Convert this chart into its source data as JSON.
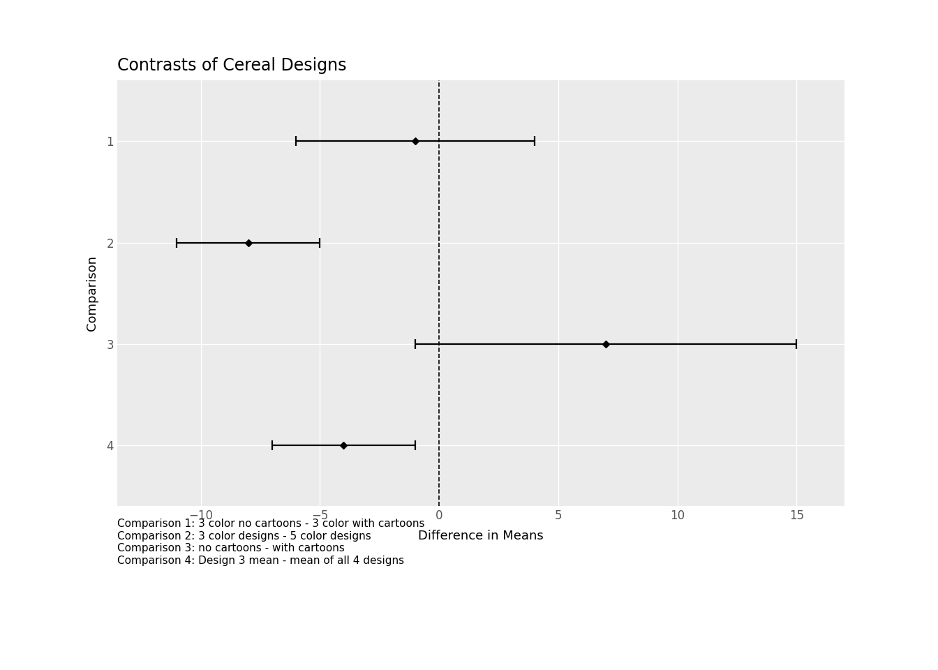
{
  "title": "Contrasts of Cereal Designs",
  "xlabel": "Difference in Means",
  "ylabel": "Comparison",
  "comparisons": [
    1,
    2,
    3,
    4
  ],
  "means": [
    -1.0,
    -8.0,
    7.0,
    -4.0
  ],
  "ci_lower": [
    -6.0,
    -11.0,
    -1.0,
    -7.0
  ],
  "ci_upper": [
    4.0,
    -5.0,
    15.0,
    -1.0
  ],
  "xlim": [
    -13.5,
    17.0
  ],
  "xticks": [
    -10,
    -5,
    0,
    5,
    10,
    15
  ],
  "ylim_low": 4.6,
  "ylim_high": 0.4,
  "vline_x": 0,
  "bg_color": "#ebebeb",
  "fig_color": "#ffffff",
  "line_color": "#000000",
  "point_color": "#000000",
  "grid_color": "#ffffff",
  "caption_lines": [
    "Comparison 1: 3 color no cartoons - 3 color with cartoons",
    "Comparison 2: 3 color designs - 5 color designs",
    "Comparison 3: no cartoons - with cartoons",
    "Comparison 4: Design 3 mean - mean of all 4 designs"
  ],
  "title_fontsize": 17,
  "axis_label_fontsize": 13,
  "tick_fontsize": 12,
  "caption_fontsize": 11,
  "point_size": 5,
  "line_width": 1.6,
  "cap_size": 5,
  "cap_thickness": 1.6
}
